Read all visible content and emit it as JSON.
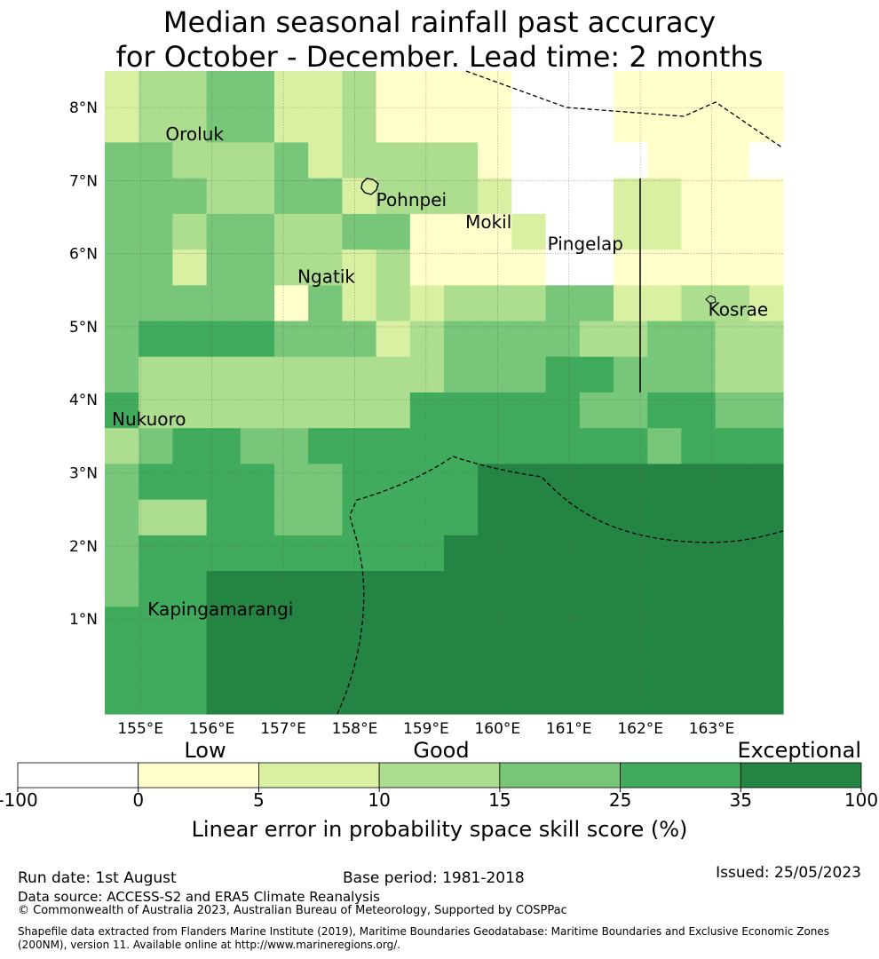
{
  "title": {
    "line1": "Median seasonal rainfall past accuracy",
    "line2": "for October - December. Lead time: 2 months"
  },
  "map": {
    "lon_ticks": [
      "155°E",
      "156°E",
      "157°E",
      "158°E",
      "159°E",
      "160°E",
      "161°E",
      "162°E",
      "163°E"
    ],
    "lat_ticks": [
      "8°N",
      "7°N",
      "6°N",
      "5°N",
      "4°N",
      "3°N",
      "2°N",
      "1°N"
    ],
    "lon_range": [
      154.5,
      164.0
    ],
    "lat_range": [
      -0.3,
      8.5
    ],
    "cell_size_deg": 0.833,
    "grid_lines": true,
    "places": [
      {
        "name": "Oroluk",
        "lon": 155.35,
        "lat": 7.55
      },
      {
        "name": "Pohnpei",
        "lon": 158.3,
        "lat": 6.65
      },
      {
        "name": "Mokil",
        "lon": 159.55,
        "lat": 6.35
      },
      {
        "name": "Pingelap",
        "lon": 160.7,
        "lat": 6.05
      },
      {
        "name": "Ngatik",
        "lon": 157.2,
        "lat": 5.6
      },
      {
        "name": "Kosrae",
        "lon": 162.95,
        "lat": 5.15
      },
      {
        "name": "Nukuoro",
        "lon": 154.6,
        "lat": 3.65
      },
      {
        "name": "Kapingamarangi",
        "lon": 155.1,
        "lat": 1.05
      }
    ],
    "cell_categories": [
      [
        2,
        3,
        3,
        4,
        4,
        2,
        2,
        3,
        1,
        1,
        1,
        1,
        0,
        0,
        0,
        1,
        1,
        1,
        1,
        1
      ],
      [
        2,
        3,
        3,
        4,
        4,
        2,
        2,
        3,
        1,
        1,
        1,
        1,
        0,
        0,
        0,
        1,
        1,
        1,
        1,
        1
      ],
      [
        4,
        4,
        3,
        3,
        3,
        4,
        2,
        3,
        3,
        3,
        3,
        1,
        0,
        0,
        0,
        0,
        1,
        1,
        1,
        0
      ],
      [
        4,
        4,
        4,
        3,
        3,
        4,
        4,
        2,
        3,
        3,
        3,
        2,
        0,
        0,
        0,
        2,
        2,
        1,
        1,
        1
      ],
      [
        4,
        4,
        3,
        4,
        4,
        3,
        3,
        4,
        4,
        1,
        1,
        1,
        2,
        0,
        0,
        2,
        2,
        1,
        1,
        1
      ],
      [
        4,
        4,
        2,
        4,
        4,
        3,
        3,
        2,
        3,
        1,
        1,
        1,
        1,
        0,
        0,
        1,
        1,
        1,
        1,
        1
      ],
      [
        4,
        4,
        4,
        4,
        4,
        1,
        4,
        2,
        3,
        2,
        3,
        3,
        3,
        4,
        4,
        2,
        2,
        3,
        3,
        2
      ],
      [
        4,
        5,
        5,
        5,
        5,
        4,
        4,
        4,
        2,
        3,
        4,
        4,
        4,
        4,
        3,
        3,
        4,
        4,
        3,
        3
      ],
      [
        4,
        3,
        3,
        3,
        3,
        3,
        3,
        3,
        3,
        3,
        4,
        4,
        4,
        5,
        5,
        4,
        4,
        4,
        3,
        3
      ],
      [
        5,
        3,
        3,
        3,
        3,
        3,
        3,
        3,
        3,
        5,
        5,
        5,
        5,
        5,
        4,
        4,
        5,
        5,
        4,
        4
      ],
      [
        3,
        4,
        5,
        5,
        4,
        4,
        5,
        5,
        5,
        5,
        5,
        5,
        5,
        5,
        5,
        5,
        4,
        5,
        5,
        5
      ],
      [
        4,
        5,
        5,
        5,
        5,
        4,
        4,
        5,
        5,
        5,
        5,
        6,
        6,
        6,
        6,
        6,
        6,
        6,
        6,
        6
      ],
      [
        4,
        3,
        3,
        5,
        5,
        4,
        4,
        5,
        5,
        5,
        5,
        6,
        6,
        6,
        6,
        6,
        6,
        6,
        6,
        6
      ],
      [
        4,
        5,
        5,
        5,
        5,
        5,
        5,
        5,
        5,
        5,
        6,
        6,
        6,
        6,
        6,
        6,
        6,
        6,
        6,
        6
      ],
      [
        4,
        5,
        5,
        6,
        6,
        6,
        6,
        6,
        6,
        6,
        6,
        6,
        6,
        6,
        6,
        6,
        6,
        6,
        6,
        6
      ],
      [
        5,
        5,
        5,
        6,
        6,
        6,
        6,
        6,
        6,
        6,
        6,
        6,
        6,
        6,
        6,
        6,
        6,
        6,
        6,
        6
      ],
      [
        5,
        5,
        5,
        6,
        6,
        6,
        6,
        6,
        6,
        6,
        6,
        6,
        6,
        6,
        6,
        6,
        6,
        6,
        6,
        6
      ],
      [
        5,
        5,
        5,
        6,
        6,
        6,
        6,
        6,
        6,
        6,
        6,
        6,
        6,
        6,
        6,
        6,
        6,
        6,
        6,
        6
      ]
    ]
  },
  "colorbar": {
    "bins": [
      {
        "from": -100,
        "to": 0,
        "color": "#ffffff"
      },
      {
        "from": 0,
        "to": 5,
        "color": "#ffffcc"
      },
      {
        "from": 5,
        "to": 10,
        "color": "#d9f0a3"
      },
      {
        "from": 10,
        "to": 15,
        "color": "#addd8e"
      },
      {
        "from": 15,
        "to": 25,
        "color": "#78c679"
      },
      {
        "from": 25,
        "to": 35,
        "color": "#41ab5d"
      },
      {
        "from": 35,
        "to": 100,
        "color": "#238443"
      }
    ],
    "tick_labels": [
      "-100",
      "0",
      "5",
      "10",
      "15",
      "25",
      "35",
      "100"
    ],
    "categories": [
      "Low",
      "Good",
      "Exceptional"
    ],
    "label": "Linear error in probability space skill score (%)"
  },
  "footer": {
    "run_date": "Run date: 1st August",
    "base_period": "Base period: 1981-2018",
    "issued": "Issued: 25/05/2023",
    "data_source": "Data source: ACCESS-S2 and ERA5 Climate Reanalysis",
    "copyright": "© Commonwealth of Australia 2023, Australian Bureau of Meteorology, Supported by COSPPac",
    "shapefile_line1": "Shapefile data extracted from Flanders Marine Institute (2019), Maritime Boundaries Geodatabase: Maritime Boundaries and Exclusive Economic Zones",
    "shapefile_line2": "(200NM), version 11. Available online at http://www.marineregions.org/."
  }
}
